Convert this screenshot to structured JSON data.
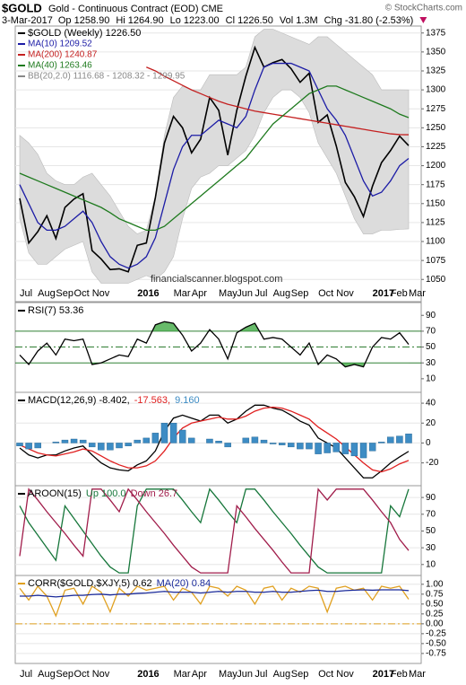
{
  "header": {
    "symbol": "$GOLD",
    "name": "Gold - Continuous Contract (EOD) CME",
    "credit": "© StockCharts.com",
    "date": "3-Mar-2017",
    "quote": [
      "Op 1258.90",
      "Hi 1264.90",
      "Lo 1223.00",
      "Cl 1226.50",
      "Vol 1.3M",
      "Chg -31.80 (-2.53%)"
    ]
  },
  "chart_data": [
    {
      "type": "line",
      "watermark": "financialscanner.blogspot.com",
      "categories": [
        "Jul",
        null,
        "Aug",
        null,
        "Sep",
        null,
        "Oct",
        null,
        "Nov",
        null,
        null,
        null,
        null,
        "2016",
        null,
        null,
        null,
        "Mar",
        null,
        "Apr",
        null,
        null,
        "May",
        null,
        "Jun",
        null,
        "Jul",
        null,
        "Aug",
        null,
        "Sep",
        null,
        null,
        "Oct",
        null,
        "Nov",
        null,
        null,
        null,
        "2017",
        null,
        "Feb",
        null,
        "Mar"
      ],
      "ylim": [
        1042,
        1383
      ],
      "yticks": [
        1050,
        1075,
        1100,
        1125,
        1150,
        1175,
        1200,
        1225,
        1250,
        1275,
        1300,
        1325,
        1350,
        1375
      ],
      "grid": true,
      "series": [
        {
          "name": "$GOLD (Weekly) 1226.50",
          "color": "#000000",
          "values": [
            1157,
            1098,
            1113,
            1134,
            1104,
            1145,
            1156,
            1163,
            1088,
            1077,
            1063,
            1064,
            1060,
            1095,
            1098,
            1158,
            1230,
            1265,
            1250,
            1217,
            1235,
            1290,
            1273,
            1214,
            1273,
            1318,
            1356,
            1330,
            1336,
            1340,
            1328,
            1310,
            1322,
            1257,
            1267,
            1226,
            1178,
            1159,
            1133,
            1173,
            1204,
            1220,
            1239,
            1226.5
          ]
        },
        {
          "name": "MA(10) 1209.52",
          "color": "#1c1ca6",
          "values": [
            1175,
            1150,
            1125,
            1115,
            1115,
            1120,
            1130,
            1140,
            1125,
            1100,
            1080,
            1070,
            1065,
            1070,
            1080,
            1105,
            1150,
            1195,
            1225,
            1240,
            1240,
            1250,
            1260,
            1255,
            1250,
            1265,
            1300,
            1330,
            1335,
            1335,
            1335,
            1330,
            1325,
            1300,
            1275,
            1260,
            1240,
            1210,
            1180,
            1160,
            1165,
            1180,
            1200,
            1209.52
          ]
        },
        {
          "name": "MA(200) 1240.87",
          "color": "#c42020",
          "values": [
            null,
            null,
            null,
            null,
            null,
            null,
            null,
            null,
            null,
            null,
            null,
            null,
            null,
            null,
            1330,
            1325,
            1318,
            1312,
            1306,
            1300,
            1295,
            1290,
            1285,
            1281,
            1278,
            1275,
            1272,
            1270,
            1268,
            1266,
            1264,
            1262,
            1260,
            1258,
            1256,
            1254,
            1252,
            1250,
            1248,
            1246,
            1244,
            1242,
            1241,
            1240.87
          ]
        },
        {
          "name": "MA(40) 1263.46",
          "color": "#1e7a1e",
          "values": [
            1190,
            1185,
            1180,
            1175,
            1170,
            1165,
            1160,
            1155,
            1150,
            1145,
            1138,
            1130,
            1125,
            1120,
            1115,
            1115,
            1120,
            1130,
            1140,
            1150,
            1160,
            1170,
            1180,
            1190,
            1200,
            1210,
            1225,
            1240,
            1255,
            1265,
            1275,
            1285,
            1295,
            1300,
            1305,
            1305,
            1300,
            1295,
            1290,
            1285,
            1280,
            1275,
            1268,
            1263.46
          ]
        }
      ],
      "band": {
        "name": "BB(20,2.0) 1116.68 - 1208.32 - 1299.95",
        "color": "#dcdcdc",
        "upper": [
          1240,
          1230,
          1215,
          1190,
          1180,
          1175,
          1175,
          1185,
          1190,
          1175,
          1160,
          1140,
          1120,
          1110,
          1115,
          1160,
          1240,
          1290,
          1305,
          1300,
          1300,
          1320,
          1320,
          1320,
          1320,
          1330,
          1370,
          1380,
          1380,
          1375,
          1370,
          1365,
          1360,
          1370,
          1370,
          1360,
          1350,
          1340,
          1330,
          1320,
          1300,
          1300,
          1300,
          1299.95
        ],
        "lower": [
          1130,
          1085,
          1070,
          1070,
          1080,
          1090,
          1095,
          1100,
          1060,
          1045,
          1045,
          1045,
          1045,
          1050,
          1055,
          1050,
          1060,
          1080,
          1130,
          1170,
          1185,
          1190,
          1200,
          1200,
          1210,
          1220,
          1240,
          1270,
          1290,
          1300,
          1300,
          1290,
          1270,
          1230,
          1210,
          1190,
          1160,
          1130,
          1110,
          1110,
          1115,
          1115,
          1116,
          1116.68
        ]
      }
    },
    {
      "type": "line",
      "ylim": [
        -6,
        105
      ],
      "yticks": [
        10,
        30,
        50,
        70,
        90
      ],
      "hlines": [
        30,
        50,
        70
      ],
      "fill_color": "#4caf50",
      "series": [
        {
          "name": "RSI(7) 53.36",
          "color": "#000000",
          "values": [
            40,
            28,
            45,
            55,
            40,
            60,
            58,
            60,
            28,
            30,
            35,
            40,
            38,
            60,
            55,
            78,
            82,
            80,
            65,
            45,
            55,
            72,
            60,
            35,
            68,
            75,
            80,
            60,
            62,
            60,
            50,
            40,
            55,
            28,
            40,
            35,
            25,
            28,
            25,
            50,
            62,
            60,
            68,
            53.36
          ]
        }
      ]
    },
    {
      "type": "line",
      "ylim": [
        -42,
        50
      ],
      "yticks": [
        -20,
        0,
        20,
        40
      ],
      "grid": true,
      "series": [
        {
          "name": "MACD(12,26,9) -8.402,",
          "color": "#000000",
          "values": [
            -5,
            -12,
            -15,
            -12,
            -12,
            -8,
            -5,
            -3,
            -12,
            -20,
            -25,
            -27,
            -28,
            -22,
            -18,
            -8,
            12,
            25,
            28,
            25,
            22,
            28,
            28,
            20,
            24,
            32,
            38,
            38,
            35,
            33,
            28,
            22,
            18,
            5,
            0,
            -5,
            -15,
            -25,
            -35,
            -35,
            -28,
            -20,
            -14,
            -8.402
          ]
        },
        {
          "name": "-17.563,",
          "color": "#e02020",
          "values": [
            -2,
            -6,
            -10,
            -12,
            -13,
            -11,
            -9,
            -6,
            -8,
            -13,
            -18,
            -22,
            -25,
            -25,
            -23,
            -18,
            -8,
            5,
            15,
            20,
            22,
            24,
            26,
            24,
            24,
            27,
            32,
            35,
            36,
            35,
            32,
            28,
            24,
            16,
            10,
            4,
            -4,
            -12,
            -20,
            -27,
            -29,
            -26,
            -21,
            -17.563
          ]
        },
        {
          "name": "9.160",
          "color": "#3d8cc4",
          "type": "bar",
          "values": [
            -3,
            -6,
            -5,
            0,
            1,
            3,
            4,
            3,
            -4,
            -7,
            -7,
            -5,
            -3,
            3,
            5,
            10,
            20,
            20,
            13,
            5,
            0,
            4,
            2,
            -4,
            0,
            5,
            6,
            3,
            -1,
            -2,
            -4,
            -6,
            -6,
            -11,
            -10,
            -9,
            -11,
            -13,
            -15,
            -8,
            1,
            6,
            7,
            9.16
          ]
        }
      ]
    },
    {
      "type": "line",
      "title": "AROON(15)",
      "ylim": [
        -2,
        103
      ],
      "yticks": [
        10,
        30,
        50,
        70,
        90
      ],
      "grid": true,
      "series": [
        {
          "name": "Up 100.0",
          "color": "#16763a",
          "values": [
            80,
            60,
            45,
            30,
            15,
            80,
            65,
            50,
            35,
            20,
            7,
            0,
            0,
            80,
            100,
            100,
            100,
            100,
            87,
            73,
            60,
            100,
            87,
            73,
            60,
            100,
            100,
            87,
            73,
            60,
            47,
            33,
            20,
            7,
            0,
            0,
            0,
            0,
            0,
            0,
            0,
            80,
            67,
            100
          ]
        },
        {
          "name": "Down 26.7",
          "color": "#a01c4a",
          "values": [
            20,
            100,
            87,
            73,
            60,
            47,
            33,
            20,
            100,
            100,
            87,
            73,
            100,
            87,
            73,
            60,
            47,
            33,
            20,
            7,
            0,
            0,
            0,
            0,
            80,
            67,
            53,
            40,
            27,
            13,
            0,
            0,
            0,
            100,
            87,
            100,
            100,
            100,
            100,
            87,
            73,
            60,
            40,
            26.7
          ]
        }
      ]
    },
    {
      "type": "line",
      "ylim": [
        -0.98,
        1.2
      ],
      "grid": true,
      "hlines": [
        0
      ],
      "hline_color": "#e0a020",
      "yticks": [
        {
          "value": 1,
          "label": "1.00"
        },
        {
          "value": 0.75,
          "label": "0.75"
        },
        {
          "value": 0.5,
          "label": "0.50"
        },
        {
          "value": 0.25,
          "label": "0.25"
        },
        {
          "value": 0,
          "label": "0.00"
        },
        {
          "value": -0.25,
          "label": "-0.25"
        },
        {
          "value": -0.5,
          "label": "-0.50"
        },
        {
          "value": -0.75,
          "label": "-0.75"
        }
      ],
      "categories": [
        "Jul",
        null,
        "Aug",
        null,
        "Sep",
        null,
        "Oct",
        null,
        "Nov",
        null,
        null,
        null,
        null,
        "2016",
        null,
        null,
        null,
        "Mar",
        null,
        "Apr",
        null,
        null,
        "May",
        null,
        "Jun",
        null,
        "Jul",
        null,
        "Aug",
        null,
        "Sep",
        null,
        null,
        "Oct",
        null,
        "Nov",
        null,
        null,
        null,
        "2017",
        null,
        "Feb",
        null,
        "Mar"
      ],
      "series": [
        {
          "name": "CORR($GOLD,$XJY,5) 0.62",
          "color": "#e0a020",
          "values": [
            0.9,
            0.6,
            0.95,
            0.7,
            0.2,
            0.85,
            0.9,
            0.5,
            0.95,
            0.8,
            0.3,
            0.9,
            0.7,
            0.95,
            0.85,
            0.9,
            0.95,
            0.6,
            0.9,
            0.8,
            0.5,
            0.95,
            0.9,
            0.7,
            0.95,
            0.85,
            0.5,
            0.9,
            0.95,
            0.6,
            0.9,
            0.8,
            0.95,
            0.9,
            0.3,
            0.9,
            0.95,
            0.85,
            0.9,
            0.6,
            0.95,
            0.9,
            0.95,
            0.62
          ]
        },
        {
          "name": "MA(20) 0.84",
          "color": "#1a2a9a",
          "values": [
            0.7,
            0.7,
            0.72,
            0.7,
            0.68,
            0.7,
            0.72,
            0.72,
            0.74,
            0.75,
            0.73,
            0.75,
            0.75,
            0.77,
            0.78,
            0.8,
            0.82,
            0.8,
            0.8,
            0.8,
            0.78,
            0.8,
            0.82,
            0.8,
            0.82,
            0.82,
            0.8,
            0.8,
            0.82,
            0.8,
            0.8,
            0.82,
            0.84,
            0.85,
            0.82,
            0.82,
            0.84,
            0.85,
            0.86,
            0.85,
            0.86,
            0.86,
            0.86,
            0.84
          ]
        }
      ]
    }
  ]
}
